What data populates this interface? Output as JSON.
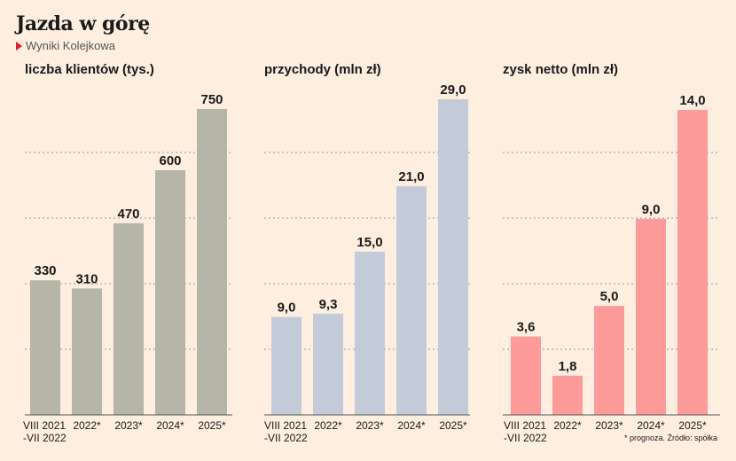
{
  "header": {
    "title": "Jazda w górę",
    "subtitle": "Wyniki Kolejkowa"
  },
  "footnote": "* prognoza. Źródło: spółka",
  "chart_data": [
    {
      "type": "bar",
      "title": "liczba klientów (tys.)",
      "categories": [
        "VIII 2021\n-VII 2022",
        "2022*",
        "2023*",
        "2024*",
        "2025*"
      ],
      "values": [
        330,
        310,
        470,
        600,
        750
      ],
      "value_labels": [
        "330",
        "310",
        "470",
        "600",
        "750"
      ],
      "ylim": [
        0,
        750
      ],
      "color": "#b5b5a8"
    },
    {
      "type": "bar",
      "title": "przychody (mln zł)",
      "categories": [
        "VIII 2021\n-VII 2022",
        "2022*",
        "2023*",
        "2024*",
        "2025*"
      ],
      "values": [
        9.0,
        9.3,
        15.0,
        21.0,
        29.0
      ],
      "value_labels": [
        "9,0",
        "9,3",
        "15,0",
        "21,0",
        "29,0"
      ],
      "ylim": [
        0,
        29
      ],
      "color": "#c3cbd8"
    },
    {
      "type": "bar",
      "title": "zysk netto (mln zł)",
      "categories": [
        "VIII 2021\n-VII 2022",
        "2022*",
        "2023*",
        "2024*",
        "2025*"
      ],
      "values": [
        3.6,
        1.8,
        5.0,
        9.0,
        14.0
      ],
      "value_labels": [
        "3,6",
        "1,8",
        "5,0",
        "9,0",
        "14,0"
      ],
      "ylim": [
        0,
        14
      ],
      "color": "#fd9a9a"
    }
  ]
}
